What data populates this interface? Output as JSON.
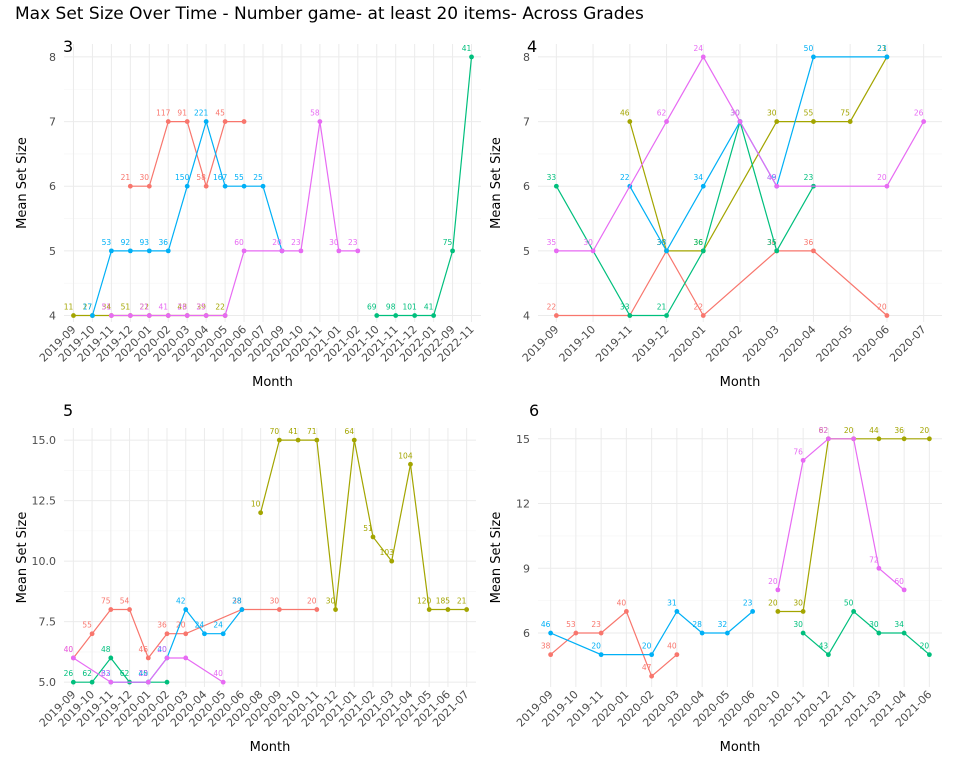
{
  "page": {
    "title": "Max Set Size Over Time - Number game- at least 20 items- Across Grades"
  },
  "colors": [
    "#F8766D",
    "#A3A500",
    "#00BF7D",
    "#00B0F6",
    "#E76BF3"
  ],
  "chart_data": [
    {
      "type": "line",
      "facet": "3",
      "xlabel": "Month",
      "ylabel": "Mean Set Size",
      "categories": [
        "2019-09",
        "2019-10",
        "2019-11",
        "2019-12",
        "2020-01",
        "2020-02",
        "2020-03",
        "2020-04",
        "2020-05",
        "2020-06",
        "2020-07",
        "2020-09",
        "2020-10",
        "2020-11",
        "2021-01",
        "2021-02",
        "2021-10",
        "2021-11",
        "2021-12",
        "2022-01",
        "2022-09",
        "2022-11"
      ],
      "yticks": [
        4,
        5,
        6,
        7,
        8
      ],
      "yticklabels": [
        "4",
        "5",
        "6",
        "7",
        "8"
      ],
      "ylim": [
        3.9,
        8.2
      ],
      "grid": true,
      "series": [
        {
          "points": [
            [
              "2019-12",
              6,
              "21"
            ],
            [
              "2020-01",
              6,
              "30"
            ],
            [
              "2020-02",
              7,
              "117"
            ],
            [
              "2020-03",
              7,
              "91"
            ],
            [
              "2020-04",
              6,
              "58"
            ],
            [
              "2020-05",
              7,
              "45"
            ],
            [
              "2020-06",
              7,
              ""
            ]
          ]
        },
        {
          "points": [
            [
              "2019-09",
              4,
              "11"
            ],
            [
              "2019-10",
              4,
              "27"
            ],
            [
              "2019-11",
              4,
              "34"
            ],
            [
              "2019-12",
              4,
              "51"
            ],
            [
              "2020-01",
              4,
              "22"
            ],
            [
              "2020-02",
              4,
              ""
            ],
            [
              "2020-03",
              4,
              "43"
            ],
            [
              "2020-04",
              4,
              "39"
            ],
            [
              "2020-05",
              4,
              "22"
            ]
          ]
        },
        {
          "points": [
            [
              "2021-10",
              4,
              "69"
            ],
            [
              "2021-11",
              4,
              "98"
            ],
            [
              "2021-12",
              4,
              "101"
            ],
            [
              "2022-01",
              4,
              "41"
            ],
            [
              "2022-09",
              5,
              "75"
            ],
            [
              "2022-11",
              8,
              "41"
            ]
          ]
        },
        {
          "points": [
            [
              "2019-10",
              4,
              "17"
            ],
            [
              "2019-11",
              5,
              "53"
            ],
            [
              "2019-12",
              5,
              "92"
            ],
            [
              "2020-01",
              5,
              "93"
            ],
            [
              "2020-02",
              5,
              "36"
            ],
            [
              "2020-03",
              6,
              "150"
            ],
            [
              "2020-04",
              7,
              "221"
            ],
            [
              "2020-05",
              6,
              "167"
            ],
            [
              "2020-06",
              6,
              "55"
            ],
            [
              "2020-07",
              6,
              "25"
            ],
            [
              "2020-09",
              5,
              ""
            ]
          ]
        },
        {
          "points": [
            [
              "2019-11",
              4,
              "51"
            ],
            [
              "2019-12",
              4,
              ""
            ],
            [
              "2020-01",
              4,
              "21"
            ],
            [
              "2020-02",
              4,
              "41"
            ],
            [
              "2020-03",
              4,
              "26"
            ],
            [
              "2020-04",
              4,
              "25"
            ],
            [
              "2020-05",
              4,
              ""
            ],
            [
              "2020-06",
              5,
              "60"
            ],
            [
              "2020-09",
              5,
              "20"
            ],
            [
              "2020-10",
              5,
              "23"
            ],
            [
              "2020-11",
              7,
              "58"
            ],
            [
              "2021-01",
              5,
              "30"
            ],
            [
              "2021-02",
              5,
              "23"
            ]
          ]
        }
      ]
    },
    {
      "type": "line",
      "facet": "4",
      "xlabel": "Month",
      "ylabel": "Mean Set Size",
      "categories": [
        "2019-09",
        "2019-10",
        "2019-11",
        "2019-12",
        "2020-01",
        "2020-02",
        "2020-03",
        "2020-04",
        "2020-05",
        "2020-06",
        "2020-07"
      ],
      "yticks": [
        4,
        5,
        6,
        7,
        8
      ],
      "yticklabels": [
        "4",
        "5",
        "6",
        "7",
        "8"
      ],
      "ylim": [
        3.9,
        8.2
      ],
      "grid": true,
      "series": [
        {
          "points": [
            [
              "2019-09",
              4,
              "22"
            ],
            [
              "2019-11",
              4,
              ""
            ],
            [
              "2019-12",
              5,
              "38"
            ],
            [
              "2020-01",
              4,
              "22"
            ],
            [
              "2020-03",
              5,
              "36"
            ],
            [
              "2020-04",
              5,
              "36"
            ],
            [
              "2020-06",
              4,
              "20"
            ]
          ]
        },
        {
          "points": [
            [
              "2019-11",
              7,
              "46"
            ],
            [
              "2019-12",
              5,
              "35"
            ],
            [
              "2020-01",
              5,
              "36"
            ],
            [
              "2020-03",
              7,
              "30"
            ],
            [
              "2020-04",
              7,
              "55"
            ],
            [
              "2020-05",
              7,
              "75"
            ],
            [
              "2020-06",
              8,
              "21"
            ]
          ]
        },
        {
          "points": [
            [
              "2019-09",
              6,
              "33"
            ],
            [
              "2019-11",
              4,
              "33"
            ],
            [
              "2019-12",
              4,
              "21"
            ],
            [
              "2020-01",
              5,
              "36"
            ],
            [
              "2020-02",
              7,
              "30"
            ],
            [
              "2020-03",
              5,
              "35"
            ],
            [
              "2020-04",
              6,
              "23"
            ]
          ]
        },
        {
          "points": [
            [
              "2019-11",
              6,
              "22"
            ],
            [
              "2019-12",
              5,
              "38"
            ],
            [
              "2020-01",
              6,
              "34"
            ],
            [
              "2020-02",
              7,
              ""
            ],
            [
              "2020-03",
              6,
              "49"
            ],
            [
              "2020-04",
              8,
              "50"
            ],
            [
              "2020-06",
              8,
              "23"
            ]
          ]
        },
        {
          "points": [
            [
              "2019-09",
              5,
              "35"
            ],
            [
              "2019-10",
              5,
              "30"
            ],
            [
              "2019-12",
              7,
              "62"
            ],
            [
              "2020-01",
              8,
              "24"
            ],
            [
              "2020-02",
              7,
              "30"
            ],
            [
              "2020-03",
              6,
              "43"
            ],
            [
              "2020-06",
              6,
              "20"
            ],
            [
              "2020-07",
              7,
              "26"
            ]
          ]
        }
      ]
    },
    {
      "type": "line",
      "facet": "5",
      "xlabel": "Month",
      "ylabel": "Mean Set Size",
      "categories": [
        "2019-09",
        "2019-10",
        "2019-11",
        "2019-12",
        "2020-01",
        "2020-02",
        "2020-03",
        "2020-04",
        "2020-05",
        "2020-06",
        "2020-08",
        "2020-09",
        "2020-10",
        "2020-11",
        "2020-12",
        "2021-01",
        "2021-02",
        "2021-03",
        "2021-04",
        "2021-05",
        "2021-06",
        "2021-07"
      ],
      "yticks": [
        5,
        7.5,
        10,
        12.5,
        15
      ],
      "yticklabels": [
        "5.0",
        "7.5",
        "10.0",
        "12.5",
        "15.0"
      ],
      "ylim": [
        4.8,
        15.5
      ],
      "grid": true,
      "series": [
        {
          "points": [
            [
              "2019-09",
              6,
              "40"
            ],
            [
              "2019-10",
              7,
              "55"
            ],
            [
              "2019-11",
              8,
              "75"
            ],
            [
              "2019-12",
              8,
              "54"
            ],
            [
              "2020-01",
              6,
              "46"
            ],
            [
              "2020-02",
              7,
              "36"
            ],
            [
              "2020-03",
              7,
              "20"
            ],
            [
              "2020-06",
              8,
              "38"
            ],
            [
              "2020-09",
              8,
              "30"
            ],
            [
              "2020-11",
              8,
              "20"
            ]
          ]
        },
        {
          "points": [
            [
              "2020-08",
              12,
              "10"
            ],
            [
              "2020-09",
              15,
              "70"
            ],
            [
              "2020-10",
              15,
              "41"
            ],
            [
              "2020-11",
              15,
              "71"
            ],
            [
              "2020-12",
              8,
              "30"
            ],
            [
              "2021-01",
              15,
              "64"
            ],
            [
              "2021-02",
              11,
              "51"
            ],
            [
              "2021-03",
              10,
              "103"
            ],
            [
              "2021-04",
              14,
              "104"
            ],
            [
              "2021-05",
              8,
              "120"
            ],
            [
              "2021-06",
              8,
              "185"
            ],
            [
              "2021-07",
              8,
              "21"
            ]
          ]
        },
        {
          "points": [
            [
              "2019-09",
              5,
              "26"
            ],
            [
              "2019-10",
              5,
              "62"
            ],
            [
              "2019-11",
              6,
              "48"
            ],
            [
              "2019-12",
              5,
              "62"
            ],
            [
              "2020-01",
              5,
              "45"
            ],
            [
              "2020-02",
              5,
              ""
            ]
          ]
        },
        {
          "points": [
            [
              "2019-11",
              5,
              "33"
            ],
            [
              "2020-01",
              5,
              "40"
            ],
            [
              "2020-02",
              6,
              "40"
            ],
            [
              "2020-03",
              8,
              "42"
            ],
            [
              "2020-04",
              7,
              "24"
            ],
            [
              "2020-05",
              7,
              "24"
            ],
            [
              "2020-06",
              8,
              "28"
            ]
          ]
        },
        {
          "points": [
            [
              "2019-09",
              6,
              "40"
            ],
            [
              "2019-11",
              5,
              "62"
            ],
            [
              "2020-01",
              5,
              "22"
            ],
            [
              "2020-02",
              6,
              "20"
            ],
            [
              "2020-03",
              6,
              ""
            ],
            [
              "2020-05",
              5,
              "40"
            ]
          ]
        }
      ]
    },
    {
      "type": "line",
      "facet": "6",
      "xlabel": "Month",
      "ylabel": "Mean Set Size",
      "categories": [
        "2019-09",
        "2019-10",
        "2019-11",
        "2020-01",
        "2020-02",
        "2020-03",
        "2020-04",
        "2020-05",
        "2020-06",
        "2020-10",
        "2020-11",
        "2020-12",
        "2021-01",
        "2021-03",
        "2021-04",
        "2021-06"
      ],
      "yticks": [
        6,
        9,
        12,
        15
      ],
      "yticklabels": [
        "6",
        "9",
        "12",
        "15"
      ],
      "ylim": [
        3.5,
        15.5
      ],
      "grid": true,
      "series": [
        {
          "points": [
            [
              "2019-09",
              5,
              "38"
            ],
            [
              "2019-10",
              6,
              "53"
            ],
            [
              "2019-11",
              6,
              "23"
            ],
            [
              "2020-01",
              7,
              "40"
            ],
            [
              "2020-02",
              4,
              "47"
            ],
            [
              "2020-03",
              5,
              "40"
            ]
          ]
        },
        {
          "points": [
            [
              "2020-10",
              7,
              "20"
            ],
            [
              "2020-11",
              7,
              "30"
            ],
            [
              "2020-12",
              15,
              "62"
            ],
            [
              "2021-01",
              15,
              "20"
            ],
            [
              "2021-03",
              15,
              "44"
            ],
            [
              "2021-04",
              15,
              "36"
            ],
            [
              "2021-06",
              15,
              "20"
            ]
          ]
        },
        {
          "points": [
            [
              "2020-11",
              6,
              "30"
            ],
            [
              "2020-12",
              5,
              "43"
            ],
            [
              "2021-01",
              7,
              "50"
            ],
            [
              "2021-03",
              6,
              "30"
            ],
            [
              "2021-04",
              6,
              "34"
            ],
            [
              "2021-06",
              5,
              "20"
            ]
          ]
        },
        {
          "points": [
            [
              "2019-09",
              6,
              "46"
            ],
            [
              "2019-11",
              5,
              "20"
            ],
            [
              "2020-02",
              5,
              "20"
            ],
            [
              "2020-03",
              7,
              "31"
            ],
            [
              "2020-04",
              6,
              "28"
            ],
            [
              "2020-05",
              6,
              "32"
            ],
            [
              "2020-06",
              7,
              "23"
            ]
          ]
        },
        {
          "points": [
            [
              "2020-10",
              8,
              "20"
            ],
            [
              "2020-11",
              14,
              "76"
            ],
            [
              "2020-12",
              15,
              "82"
            ],
            [
              "2021-01",
              15,
              ""
            ],
            [
              "2021-03",
              9,
              "72"
            ],
            [
              "2021-04",
              8,
              "60"
            ]
          ]
        }
      ]
    }
  ]
}
